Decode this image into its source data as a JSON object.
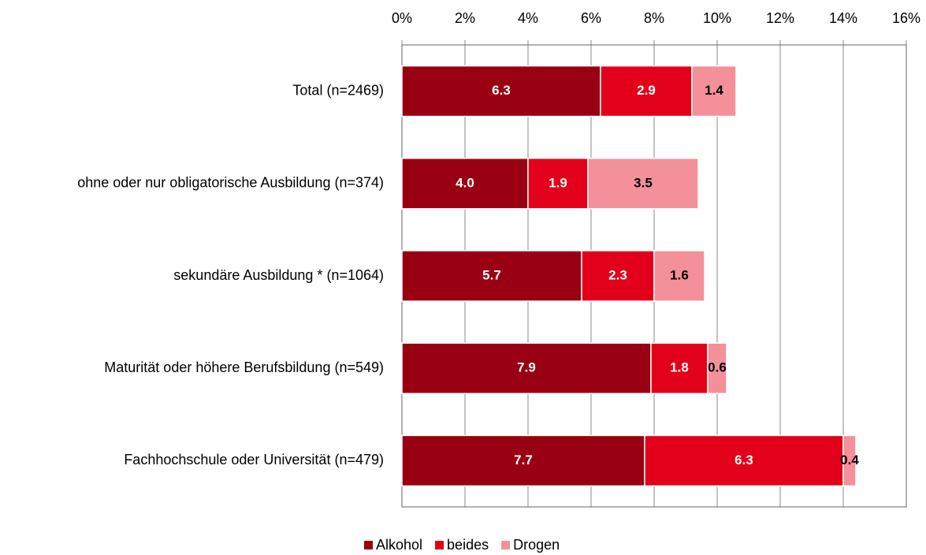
{
  "chart_data": {
    "type": "stacked_barh",
    "categories": [
      "Total (n=2469)",
      "ohne oder nur obligatorische Ausbildung (n=374)",
      "sekundäre Ausbildung * (n=1064)",
      "Maturität oder höhere Berufsbildung (n=549)",
      "Fachhochschule oder Universität (n=479)"
    ],
    "series": [
      {
        "name": "Alkohol",
        "color": "#990011",
        "label_color": "#ffffff",
        "values": [
          6.3,
          4.0,
          5.7,
          7.9,
          7.7
        ],
        "value_labels": [
          "6.3",
          "4.0",
          "5.7",
          "7.9",
          "7.7"
        ]
      },
      {
        "name": "beides",
        "color": "#e2001a",
        "label_color": "#ffffff",
        "values": [
          2.9,
          1.9,
          2.3,
          1.8,
          6.3
        ],
        "value_labels": [
          "2.9",
          "1.9",
          "2.3",
          "1.8",
          "6.3"
        ]
      },
      {
        "name": "Drogen",
        "color": "#f4909a",
        "label_color": "#000000",
        "values": [
          1.4,
          3.5,
          1.6,
          0.6,
          0.4
        ],
        "value_labels": [
          "1.4",
          "3.5",
          "1.6",
          "0.6",
          "0.4"
        ]
      }
    ],
    "xlim": [
      0,
      16
    ],
    "xticks": [
      {
        "value": 0,
        "label": "0%"
      },
      {
        "value": 2,
        "label": "2%"
      },
      {
        "value": 4,
        "label": "4%"
      },
      {
        "value": 6,
        "label": "6%"
      },
      {
        "value": 8,
        "label": "8%"
      },
      {
        "value": 10,
        "label": "10%"
      },
      {
        "value": 12,
        "label": "12%"
      },
      {
        "value": 14,
        "label": "14%"
      },
      {
        "value": 16,
        "label": "16%"
      }
    ],
    "grid": true,
    "legend": "bottom"
  }
}
